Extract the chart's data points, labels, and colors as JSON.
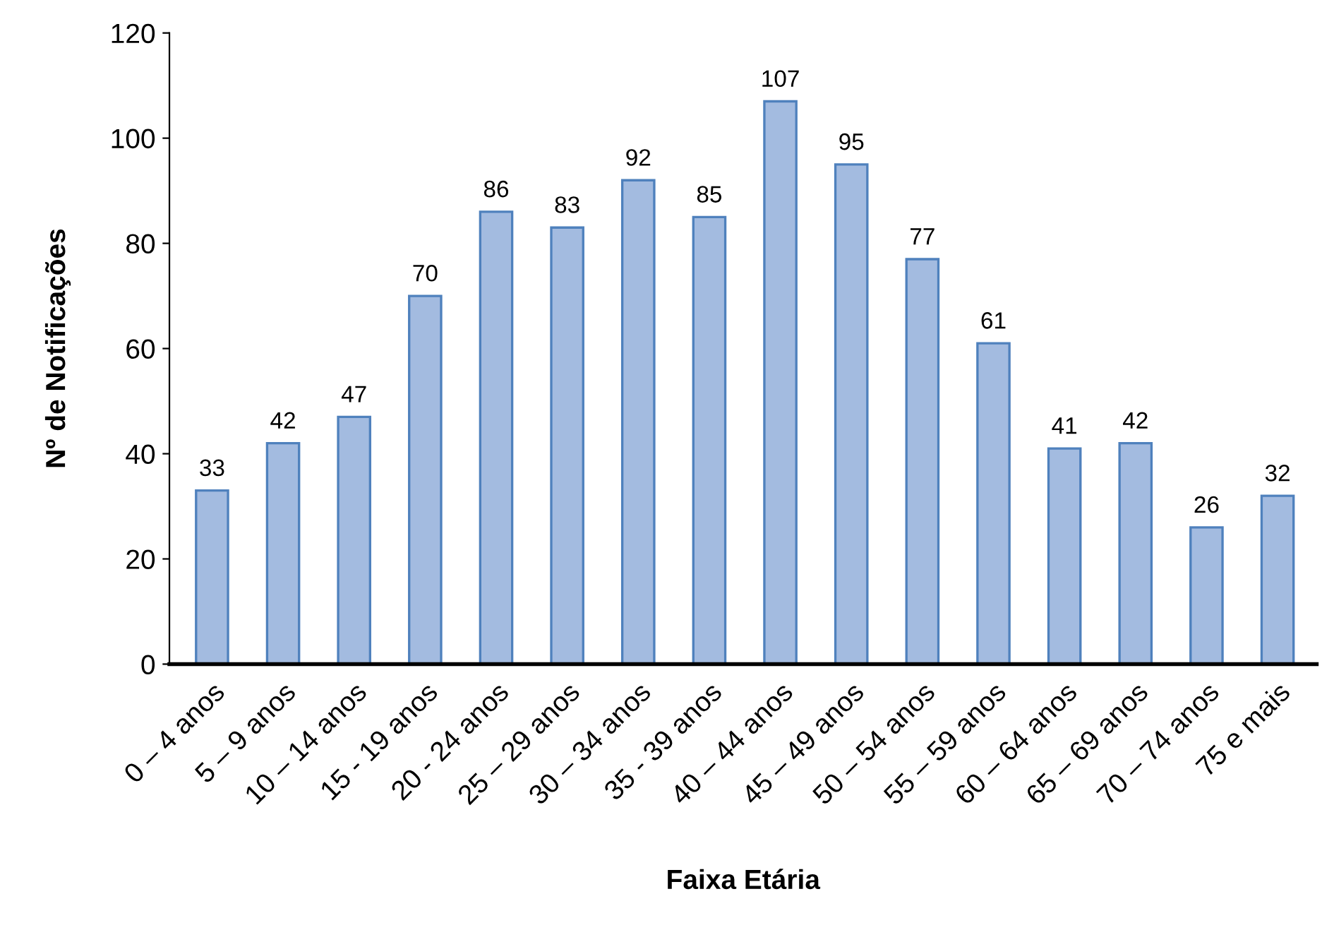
{
  "chart_data": {
    "type": "bar",
    "xlabel": "Faixa Etária",
    "ylabel": "Nº de Notificações",
    "categories": [
      "0 – 4 anos",
      "5 – 9 anos",
      "10 – 14 anos",
      "15 - 19 anos",
      "20 - 24 anos",
      "25 – 29 anos",
      "30 – 34 anos",
      "35 - 39 anos",
      "40 – 44 anos",
      "45 – 49 anos",
      "50 – 54 anos",
      "55 – 59 anos",
      "60 – 64 anos",
      "65 – 69 anos",
      "70 – 74 anos",
      "75 e mais"
    ],
    "values": [
      33,
      42,
      47,
      70,
      86,
      83,
      92,
      85,
      107,
      95,
      77,
      61,
      41,
      42,
      26,
      32
    ],
    "color": "#a3bbe0",
    "ylim": [
      0,
      120
    ],
    "yticks": [
      0,
      20,
      40,
      60,
      80,
      100,
      120
    ],
    "grid": false,
    "data_labels": true
  }
}
